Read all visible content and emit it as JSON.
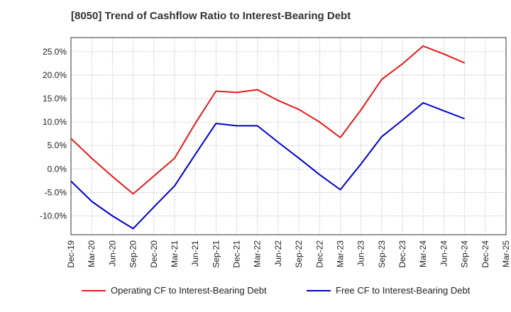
{
  "chart_data": {
    "type": "line",
    "title": "[8050]  Trend of Cashflow Ratio to Interest-Bearing Debt",
    "xlabel": "",
    "ylabel": "",
    "categories": [
      "Dec-19",
      "Mar-20",
      "Jun-20",
      "Sep-20",
      "Dec-20",
      "Mar-21",
      "Jun-21",
      "Sep-21",
      "Dec-21",
      "Mar-22",
      "Jun-22",
      "Sep-22",
      "Dec-22",
      "Mar-23",
      "Jun-23",
      "Sep-23",
      "Dec-23",
      "Mar-24",
      "Jun-24",
      "Sep-24",
      "Dec-24",
      "Mar-25"
    ],
    "ylim": [
      -14,
      28
    ],
    "yticks": [
      -10,
      -5,
      0,
      5,
      10,
      15,
      20,
      25
    ],
    "ytick_labels": [
      "-10.0%",
      "-5.0%",
      "0.0%",
      "5.0%",
      "10.0%",
      "15.0%",
      "20.0%",
      "25.0%"
    ],
    "grid": true,
    "legend_position": "bottom",
    "series": [
      {
        "name": "Operating CF to Interest-Bearing Debt",
        "color": "#e41a1c",
        "values": [
          6.5,
          2.3,
          -1.6,
          -5.3,
          -1.5,
          2.3,
          9.7,
          16.6,
          16.3,
          16.9,
          14.6,
          12.7,
          10.0,
          6.7,
          12.6,
          19.1,
          22.4,
          26.2,
          24.5,
          22.6,
          null,
          null
        ]
      },
      {
        "name": "Free CF to Interest-Bearing Debt",
        "color": "#0000cc",
        "values": [
          -2.6,
          -6.9,
          -10.0,
          -12.7,
          -8.1,
          -3.6,
          3.1,
          9.7,
          9.2,
          9.2,
          5.7,
          2.3,
          -1.2,
          -4.4,
          1.1,
          6.9,
          10.4,
          14.1,
          12.4,
          10.7,
          null,
          null
        ]
      }
    ]
  }
}
